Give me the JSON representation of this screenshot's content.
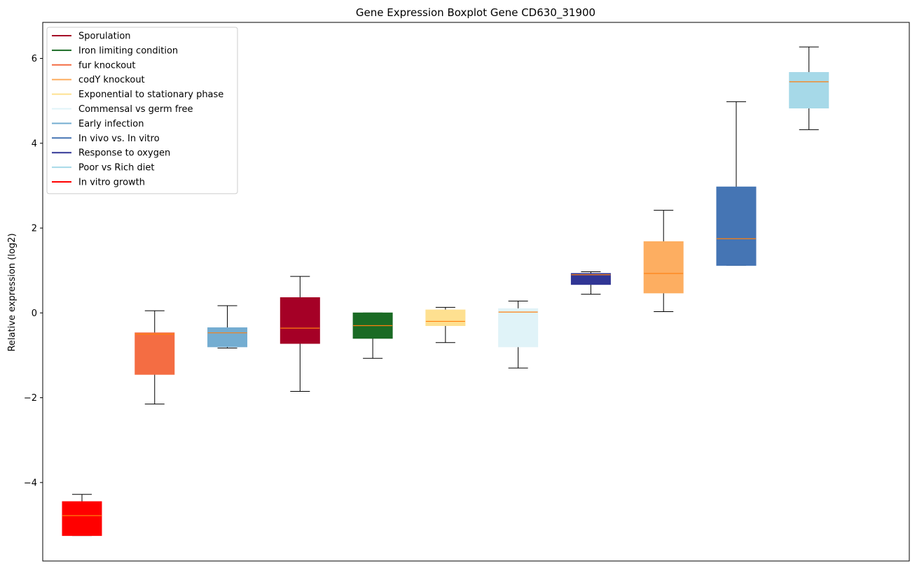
{
  "chart_data": {
    "type": "boxplot",
    "title": "Gene Expression Boxplot Gene CD630_31900",
    "xlabel": "",
    "ylabel": "Relative expression (log2)",
    "ylim": [
      -5.85,
      6.85
    ],
    "yticks": [
      -4,
      -2,
      0,
      2,
      4,
      6
    ],
    "ytick_labels": [
      "−4",
      "−2",
      "0",
      "2",
      "4",
      "6"
    ],
    "grid": false,
    "legend_position": "top-left",
    "median_color": "#ff7f0e",
    "legend": [
      {
        "label": "Sporulation",
        "color": "#a50026"
      },
      {
        "label": "Iron limiting condition",
        "color": "#1a6b24"
      },
      {
        "label": "fur knockout",
        "color": "#f46d43"
      },
      {
        "label": "codY knockout",
        "color": "#fdae61"
      },
      {
        "label": "Exponential to stationary phase",
        "color": "#fee090"
      },
      {
        "label": "Commensal vs germ free",
        "color": "#e0f3f8"
      },
      {
        "label": "Early infection",
        "color": "#74add1"
      },
      {
        "label": "In vivo vs. In vitro",
        "color": "#4575b4"
      },
      {
        "label": "Response to oxygen",
        "color": "#313695"
      },
      {
        "label": "Poor vs Rich diet",
        "color": "#a6d9e8"
      },
      {
        "label": "In vitro growth",
        "color": "#ff0000"
      }
    ],
    "boxes": [
      {
        "group": "In vitro growth",
        "color": "#ff0000",
        "whislo": -5.25,
        "q1": -5.25,
        "med": -4.78,
        "q3": -4.45,
        "whishi": -4.28
      },
      {
        "group": "fur knockout",
        "color": "#f46d43",
        "whislo": -2.15,
        "q1": -1.45,
        "med": -0.5,
        "q3": -0.47,
        "whishi": 0.05
      },
      {
        "group": "Early infection",
        "color": "#74add1",
        "whislo": -0.83,
        "q1": -0.8,
        "med": -0.47,
        "q3": -0.35,
        "whishi": 0.17
      },
      {
        "group": "Sporulation",
        "color": "#a50026",
        "whislo": -1.85,
        "q1": -0.72,
        "med": -0.36,
        "q3": 0.36,
        "whishi": 0.86
      },
      {
        "group": "Iron limiting condition",
        "color": "#1a6b24",
        "whislo": -1.07,
        "q1": -0.6,
        "med": -0.3,
        "q3": 0.0,
        "whishi": 0.0
      },
      {
        "group": "Exponential to stationary phase",
        "color": "#fee090",
        "whislo": -0.7,
        "q1": -0.3,
        "med": -0.2,
        "q3": 0.07,
        "whishi": 0.13
      },
      {
        "group": "Commensal vs germ free",
        "color": "#e0f3f8",
        "whislo": -1.3,
        "q1": -0.8,
        "med": 0.02,
        "q3": 0.1,
        "whishi": 0.28
      },
      {
        "group": "Response to oxygen",
        "color": "#313695",
        "whislo": 0.44,
        "q1": 0.67,
        "med": 0.9,
        "q3": 0.93,
        "whishi": 0.97
      },
      {
        "group": "codY knockout",
        "color": "#fdae61",
        "whislo": 0.03,
        "q1": 0.47,
        "med": 0.93,
        "q3": 1.68,
        "whishi": 2.42
      },
      {
        "group": "In vivo vs. In vitro",
        "color": "#4575b4",
        "whislo": 1.12,
        "q1": 1.12,
        "med": 1.75,
        "q3": 2.97,
        "whishi": 4.98
      },
      {
        "group": "Poor vs Rich diet",
        "color": "#a6d9e8",
        "whislo": 4.32,
        "q1": 4.83,
        "med": 5.45,
        "q3": 5.67,
        "whishi": 6.27
      }
    ]
  }
}
